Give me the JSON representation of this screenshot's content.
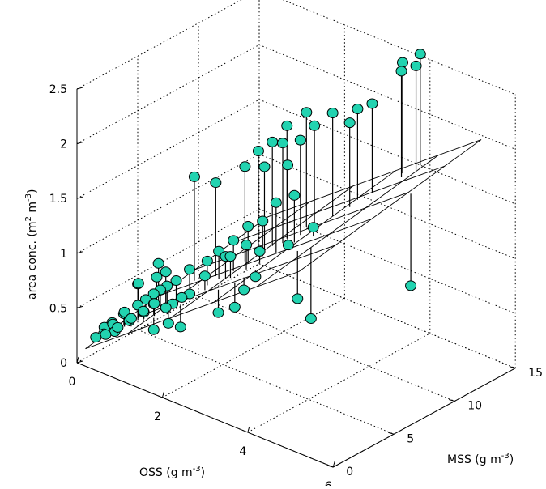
{
  "chart_data": {
    "type": "scatter",
    "subtype": "3d-scatter-with-fitted-plane",
    "title": "",
    "axes": {
      "x": {
        "label": "OSS (g m",
        "label_sup": "-3",
        "label_close": ")",
        "range": [
          0,
          6
        ],
        "ticks": [
          0,
          2,
          4,
          6
        ]
      },
      "y": {
        "label": "MSS (g m",
        "label_sup": "-3",
        "label_close": ")",
        "range": [
          0,
          15
        ],
        "ticks": [
          0,
          5,
          10,
          15
        ]
      },
      "z": {
        "label": "area conc. (m",
        "label_sup1": "2",
        "label_mid": " m",
        "label_sup2": "-3",
        "label_close": ")",
        "range": [
          0,
          2.5
        ],
        "ticks": [
          0,
          0.5,
          1,
          1.5,
          2,
          2.5
        ],
        "tick_labels": [
          "0",
          "0.5",
          "1",
          "1.5",
          "2",
          "2.5"
        ]
      }
    },
    "grid": true,
    "marker_color": "#22d3b0",
    "marker_edge": "#000000",
    "stem_color": "#000000",
    "plane": {
      "equation_z": "0.10 + 0.30*OSS + 0.020*MSS",
      "intercept": 0.1,
      "coef_oss": 0.3,
      "coef_mss": 0.02,
      "oss_range": [
        0.2,
        5.2
      ],
      "mss_range": [
        0,
        15
      ],
      "oss_lines": [
        0.2,
        1.2,
        2.2,
        3.2,
        4.2,
        5.2
      ],
      "mss_lines": [
        0,
        3,
        6,
        9,
        12,
        15
      ]
    },
    "points": [
      {
        "oss": 0.3,
        "mss": 0.5,
        "z": 0.25
      },
      {
        "oss": 0.4,
        "mss": 0.8,
        "z": 0.28
      },
      {
        "oss": 0.5,
        "mss": 0.6,
        "z": 0.3
      },
      {
        "oss": 0.6,
        "mss": 1.0,
        "z": 0.32
      },
      {
        "oss": 0.5,
        "mss": 1.2,
        "z": 0.36
      },
      {
        "oss": 0.7,
        "mss": 0.9,
        "z": 0.38
      },
      {
        "oss": 0.8,
        "mss": 1.5,
        "z": 0.42
      },
      {
        "oss": 0.6,
        "mss": 1.8,
        "z": 0.45
      },
      {
        "oss": 0.9,
        "mss": 1.3,
        "z": 0.47
      },
      {
        "oss": 1.0,
        "mss": 2.0,
        "z": 0.5
      },
      {
        "oss": 0.8,
        "mss": 2.2,
        "z": 0.52
      },
      {
        "oss": 1.1,
        "mss": 1.6,
        "z": 0.55
      },
      {
        "oss": 0.9,
        "mss": 2.5,
        "z": 0.57
      },
      {
        "oss": 1.2,
        "mss": 2.1,
        "z": 0.6
      },
      {
        "oss": 1.0,
        "mss": 2.8,
        "z": 0.62
      },
      {
        "oss": 1.3,
        "mss": 1.8,
        "z": 0.64
      },
      {
        "oss": 1.1,
        "mss": 3.0,
        "z": 0.66
      },
      {
        "oss": 0.7,
        "mss": 2.6,
        "z": 0.68
      },
      {
        "oss": 1.4,
        "mss": 2.4,
        "z": 0.58
      },
      {
        "oss": 1.2,
        "mss": 3.2,
        "z": 0.7
      },
      {
        "oss": 0.9,
        "mss": 3.4,
        "z": 0.72
      },
      {
        "oss": 1.5,
        "mss": 2.6,
        "z": 0.62
      },
      {
        "oss": 1.3,
        "mss": 3.6,
        "z": 0.74
      },
      {
        "oss": 0.6,
        "mss": 2.9,
        "z": 0.64
      },
      {
        "oss": 1.6,
        "mss": 3.0,
        "z": 0.67
      },
      {
        "oss": 1.0,
        "mss": 3.8,
        "z": 0.76
      },
      {
        "oss": 1.7,
        "mss": 3.3,
        "z": 0.7
      },
      {
        "oss": 0.4,
        "mss": 1.5,
        "z": 0.34
      },
      {
        "oss": 0.3,
        "mss": 1.2,
        "z": 0.3
      },
      {
        "oss": 0.5,
        "mss": 2.1,
        "z": 0.4
      },
      {
        "oss": 1.4,
        "mss": 1.4,
        "z": 0.44
      },
      {
        "oss": 1.8,
        "mss": 2.2,
        "z": 0.48
      },
      {
        "oss": 1.6,
        "mss": 1.9,
        "z": 0.5
      },
      {
        "oss": 0.8,
        "mss": 3.9,
        "z": 0.8
      },
      {
        "oss": 1.5,
        "mss": 4.0,
        "z": 0.85
      },
      {
        "oss": 2.0,
        "mss": 3.5,
        "z": 0.9
      },
      {
        "oss": 2.2,
        "mss": 4.5,
        "z": 1.05
      },
      {
        "oss": 1.9,
        "mss": 5.0,
        "z": 1.02
      },
      {
        "oss": 2.4,
        "mss": 4.2,
        "z": 1.1
      },
      {
        "oss": 2.1,
        "mss": 5.5,
        "z": 1.12
      },
      {
        "oss": 2.6,
        "mss": 4.8,
        "z": 1.2
      },
      {
        "oss": 2.3,
        "mss": 6.0,
        "z": 1.25
      },
      {
        "oss": 1.8,
        "mss": 4.4,
        "z": 0.95
      },
      {
        "oss": 2.8,
        "mss": 5.2,
        "z": 1.15
      },
      {
        "oss": 2.5,
        "mss": 6.5,
        "z": 1.3
      },
      {
        "oss": 1.6,
        "mss": 5.8,
        "z": 1.55
      },
      {
        "oss": 2.0,
        "mss": 6.8,
        "z": 1.7
      },
      {
        "oss": 2.2,
        "mss": 7.2,
        "z": 1.85
      },
      {
        "oss": 2.4,
        "mss": 7.0,
        "z": 1.75
      },
      {
        "oss": 2.6,
        "mss": 7.8,
        "z": 1.95
      },
      {
        "oss": 2.3,
        "mss": 8.0,
        "z": 1.9
      },
      {
        "oss": 2.8,
        "mss": 7.5,
        "z": 1.8
      },
      {
        "oss": 2.5,
        "mss": 8.5,
        "z": 2.05
      },
      {
        "oss": 2.9,
        "mss": 8.2,
        "z": 2.0
      },
      {
        "oss": 3.0,
        "mss": 9.0,
        "z": 2.1
      },
      {
        "oss": 2.7,
        "mss": 9.4,
        "z": 2.15
      },
      {
        "oss": 3.2,
        "mss": 9.8,
        "z": 2.2
      },
      {
        "oss": 3.4,
        "mss": 10.5,
        "z": 2.1
      },
      {
        "oss": 2.9,
        "mss": 6.2,
        "z": 1.55
      },
      {
        "oss": 3.1,
        "mss": 7.0,
        "z": 1.6
      },
      {
        "oss": 0.9,
        "mss": 6.5,
        "z": 1.45
      },
      {
        "oss": 3.3,
        "mss": 5.8,
        "z": 1.25
      },
      {
        "oss": 3.6,
        "mss": 6.8,
        "z": 1.4
      },
      {
        "oss": 3.0,
        "mss": 3.2,
        "z": 0.95
      },
      {
        "oss": 3.8,
        "mss": 4.8,
        "z": 0.9
      },
      {
        "oss": 4.2,
        "mss": 4.5,
        "z": 0.8
      },
      {
        "oss": 3.9,
        "mss": 13.0,
        "z": 2.5
      },
      {
        "oss": 4.1,
        "mss": 13.5,
        "z": 2.55
      },
      {
        "oss": 3.7,
        "mss": 13.8,
        "z": 2.5
      },
      {
        "oss": 4.0,
        "mss": 14.2,
        "z": 2.6
      },
      {
        "oss": 3.5,
        "mss": 12.0,
        "z": 2.2
      },
      {
        "oss": 3.3,
        "mss": 11.5,
        "z": 2.15
      },
      {
        "oss": 5.4,
        "mss": 8.5,
        "z": 1.05
      },
      {
        "oss": 2.6,
        "mss": 2.5,
        "z": 0.72
      },
      {
        "oss": 2.9,
        "mss": 2.8,
        "z": 0.8
      },
      {
        "oss": 3.1,
        "mss": 3.8,
        "z": 1.05
      }
    ]
  }
}
